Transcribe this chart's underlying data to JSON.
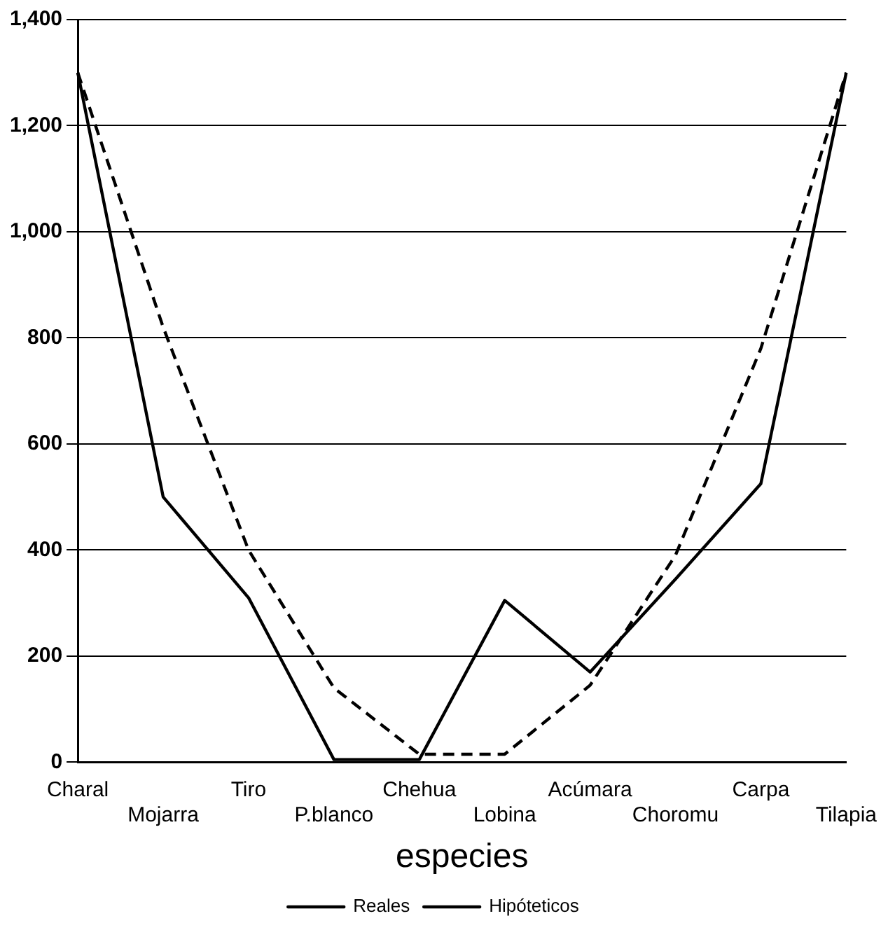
{
  "chart_data": {
    "type": "line",
    "xlabel": "especies",
    "categories": [
      "Charal",
      "Mojarra",
      "Tiro",
      "P.blanco",
      "Chehua",
      "Lobina",
      "Acúmara",
      "Choromu",
      "Carpa",
      "Tilapia"
    ],
    "series": [
      {
        "name": "Reales",
        "color": "#000000",
        "line_style": "solid",
        "values": [
          1300,
          500,
          310,
          5,
          5,
          305,
          170,
          345,
          525,
          1300
        ]
      },
      {
        "name": "Hipóteticos",
        "color": "#000000",
        "line_style": "dashed",
        "values": [
          1300,
          820,
          400,
          140,
          15,
          15,
          145,
          390,
          780,
          1300
        ]
      }
    ],
    "ylim": [
      0,
      1400
    ],
    "yticks": [
      0,
      200,
      400,
      600,
      800,
      {
        "value": 1000,
        "label": "1,000"
      },
      {
        "value": 1200,
        "label": "1,200"
      },
      {
        "value": 1400,
        "label": "1,400"
      }
    ],
    "grid": "y",
    "legend": "bottom",
    "marker": "none"
  }
}
